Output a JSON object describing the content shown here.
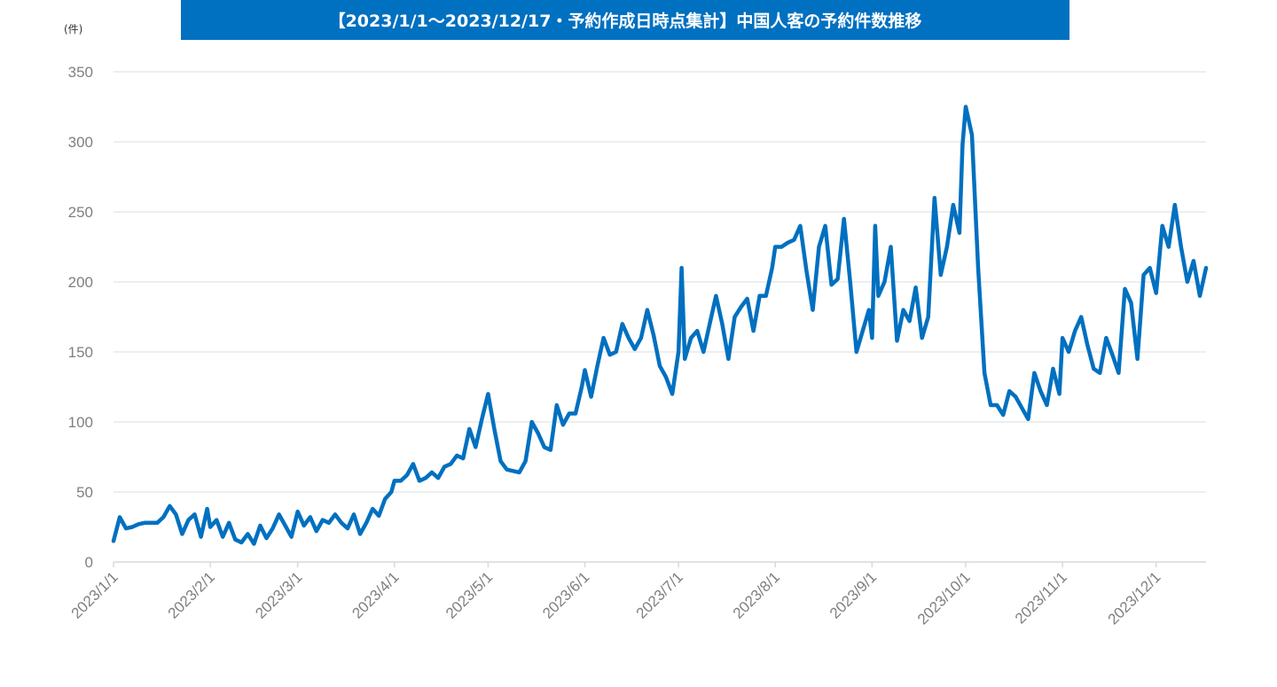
{
  "chart_data": {
    "type": "line",
    "title": "【2023/1/1〜2023/12/17・予約作成日時点集計】中国人客の予約件数推移",
    "ylabel": "(件)",
    "xlabel": "",
    "ylim": [
      0,
      350
    ],
    "xlim": [
      "2023/1/1",
      "2023/12/17"
    ],
    "yticks": [
      "0",
      "50",
      "100",
      "150",
      "200",
      "250",
      "300",
      "350"
    ],
    "xticks": [
      "2023/1/1",
      "2023/2/1",
      "2023/3/1",
      "2023/4/1",
      "2023/5/1",
      "2023/6/1",
      "2023/7/1",
      "2023/8/1",
      "2023/9/1",
      "2023/10/1",
      "2023/11/1",
      "2023/12/1"
    ],
    "grid": true,
    "legend": "none",
    "colors": {
      "line": "#0070c0",
      "title_bg": "#0070c0",
      "grid": "#e8e8e8"
    },
    "points": [
      [
        "2023/1/1",
        15
      ],
      [
        "2023/1/3",
        32
      ],
      [
        "2023/1/5",
        24
      ],
      [
        "2023/1/7",
        25
      ],
      [
        "2023/1/9",
        27
      ],
      [
        "2023/1/11",
        28
      ],
      [
        "2023/1/13",
        28
      ],
      [
        "2023/1/15",
        28
      ],
      [
        "2023/1/17",
        32
      ],
      [
        "2023/1/19",
        40
      ],
      [
        "2023/1/21",
        34
      ],
      [
        "2023/1/23",
        20
      ],
      [
        "2023/1/25",
        30
      ],
      [
        "2023/1/27",
        34
      ],
      [
        "2023/1/29",
        18
      ],
      [
        "2023/1/31",
        38
      ],
      [
        "2023/2/1",
        25
      ],
      [
        "2023/2/3",
        30
      ],
      [
        "2023/2/5",
        18
      ],
      [
        "2023/2/7",
        28
      ],
      [
        "2023/2/9",
        16
      ],
      [
        "2023/2/11",
        14
      ],
      [
        "2023/2/13",
        20
      ],
      [
        "2023/2/15",
        13
      ],
      [
        "2023/2/17",
        26
      ],
      [
        "2023/2/19",
        17
      ],
      [
        "2023/2/21",
        24
      ],
      [
        "2023/2/23",
        34
      ],
      [
        "2023/2/25",
        26
      ],
      [
        "2023/2/27",
        18
      ],
      [
        "2023/3/1",
        36
      ],
      [
        "2023/3/3",
        26
      ],
      [
        "2023/3/5",
        32
      ],
      [
        "2023/3/7",
        22
      ],
      [
        "2023/3/9",
        30
      ],
      [
        "2023/3/11",
        28
      ],
      [
        "2023/3/13",
        34
      ],
      [
        "2023/3/15",
        28
      ],
      [
        "2023/3/17",
        24
      ],
      [
        "2023/3/19",
        34
      ],
      [
        "2023/3/21",
        20
      ],
      [
        "2023/3/23",
        28
      ],
      [
        "2023/3/25",
        38
      ],
      [
        "2023/3/27",
        33
      ],
      [
        "2023/3/29",
        45
      ],
      [
        "2023/3/31",
        50
      ],
      [
        "2023/4/1",
        58
      ],
      [
        "2023/4/3",
        58
      ],
      [
        "2023/4/5",
        62
      ],
      [
        "2023/4/7",
        70
      ],
      [
        "2023/4/9",
        58
      ],
      [
        "2023/4/11",
        60
      ],
      [
        "2023/4/13",
        64
      ],
      [
        "2023/4/15",
        60
      ],
      [
        "2023/4/17",
        68
      ],
      [
        "2023/4/19",
        70
      ],
      [
        "2023/4/21",
        76
      ],
      [
        "2023/4/23",
        74
      ],
      [
        "2023/4/25",
        95
      ],
      [
        "2023/4/27",
        82
      ],
      [
        "2023/4/29",
        102
      ],
      [
        "2023/5/1",
        120
      ],
      [
        "2023/5/3",
        95
      ],
      [
        "2023/5/5",
        72
      ],
      [
        "2023/5/7",
        66
      ],
      [
        "2023/5/9",
        65
      ],
      [
        "2023/5/11",
        64
      ],
      [
        "2023/5/13",
        72
      ],
      [
        "2023/5/15",
        100
      ],
      [
        "2023/5/17",
        92
      ],
      [
        "2023/5/19",
        82
      ],
      [
        "2023/5/21",
        80
      ],
      [
        "2023/5/23",
        112
      ],
      [
        "2023/5/25",
        98
      ],
      [
        "2023/5/27",
        106
      ],
      [
        "2023/5/29",
        106
      ],
      [
        "2023/5/31",
        125
      ],
      [
        "2023/6/1",
        137
      ],
      [
        "2023/6/3",
        118
      ],
      [
        "2023/6/5",
        140
      ],
      [
        "2023/6/7",
        160
      ],
      [
        "2023/6/9",
        148
      ],
      [
        "2023/6/11",
        150
      ],
      [
        "2023/6/13",
        170
      ],
      [
        "2023/6/15",
        160
      ],
      [
        "2023/6/17",
        152
      ],
      [
        "2023/6/19",
        160
      ],
      [
        "2023/6/21",
        180
      ],
      [
        "2023/6/23",
        162
      ],
      [
        "2023/6/25",
        140
      ],
      [
        "2023/6/27",
        132
      ],
      [
        "2023/6/29",
        120
      ],
      [
        "2023/7/1",
        150
      ],
      [
        "2023/7/2",
        210
      ],
      [
        "2023/7/3",
        145
      ],
      [
        "2023/7/5",
        160
      ],
      [
        "2023/7/7",
        165
      ],
      [
        "2023/7/9",
        150
      ],
      [
        "2023/7/11",
        170
      ],
      [
        "2023/7/13",
        190
      ],
      [
        "2023/7/15",
        170
      ],
      [
        "2023/7/17",
        145
      ],
      [
        "2023/7/19",
        175
      ],
      [
        "2023/7/21",
        182
      ],
      [
        "2023/7/23",
        188
      ],
      [
        "2023/7/25",
        165
      ],
      [
        "2023/7/27",
        190
      ],
      [
        "2023/7/29",
        190
      ],
      [
        "2023/7/31",
        210
      ],
      [
        "2023/8/1",
        225
      ],
      [
        "2023/8/3",
        225
      ],
      [
        "2023/8/5",
        228
      ],
      [
        "2023/8/7",
        230
      ],
      [
        "2023/8/9",
        240
      ],
      [
        "2023/8/11",
        208
      ],
      [
        "2023/8/13",
        180
      ],
      [
        "2023/8/15",
        225
      ],
      [
        "2023/8/17",
        240
      ],
      [
        "2023/8/19",
        198
      ],
      [
        "2023/8/21",
        202
      ],
      [
        "2023/8/23",
        245
      ],
      [
        "2023/8/25",
        200
      ],
      [
        "2023/8/27",
        150
      ],
      [
        "2023/8/29",
        165
      ],
      [
        "2023/8/31",
        180
      ],
      [
        "2023/9/1",
        160
      ],
      [
        "2023/9/2",
        240
      ],
      [
        "2023/9/3",
        190
      ],
      [
        "2023/9/5",
        200
      ],
      [
        "2023/9/7",
        225
      ],
      [
        "2023/9/9",
        158
      ],
      [
        "2023/9/11",
        180
      ],
      [
        "2023/9/13",
        172
      ],
      [
        "2023/9/15",
        196
      ],
      [
        "2023/9/17",
        160
      ],
      [
        "2023/9/19",
        175
      ],
      [
        "2023/9/21",
        260
      ],
      [
        "2023/9/23",
        205
      ],
      [
        "2023/9/25",
        225
      ],
      [
        "2023/9/27",
        255
      ],
      [
        "2023/9/29",
        235
      ],
      [
        "2023/9/30",
        298
      ],
      [
        "2023/10/1",
        325
      ],
      [
        "2023/10/3",
        305
      ],
      [
        "2023/10/5",
        210
      ],
      [
        "2023/10/7",
        135
      ],
      [
        "2023/10/9",
        112
      ],
      [
        "2023/10/11",
        112
      ],
      [
        "2023/10/13",
        105
      ],
      [
        "2023/10/15",
        122
      ],
      [
        "2023/10/17",
        118
      ],
      [
        "2023/10/19",
        110
      ],
      [
        "2023/10/21",
        102
      ],
      [
        "2023/10/23",
        135
      ],
      [
        "2023/10/25",
        122
      ],
      [
        "2023/10/27",
        112
      ],
      [
        "2023/10/29",
        138
      ],
      [
        "2023/10/31",
        120
      ],
      [
        "2023/11/1",
        160
      ],
      [
        "2023/11/3",
        150
      ],
      [
        "2023/11/5",
        165
      ],
      [
        "2023/11/7",
        175
      ],
      [
        "2023/11/9",
        155
      ],
      [
        "2023/11/11",
        138
      ],
      [
        "2023/11/13",
        135
      ],
      [
        "2023/11/15",
        160
      ],
      [
        "2023/11/17",
        148
      ],
      [
        "2023/11/19",
        135
      ],
      [
        "2023/11/21",
        195
      ],
      [
        "2023/11/23",
        185
      ],
      [
        "2023/11/25",
        145
      ],
      [
        "2023/11/27",
        205
      ],
      [
        "2023/11/29",
        210
      ],
      [
        "2023/12/1",
        192
      ],
      [
        "2023/12/3",
        240
      ],
      [
        "2023/12/5",
        225
      ],
      [
        "2023/12/7",
        255
      ],
      [
        "2023/12/9",
        225
      ],
      [
        "2023/12/11",
        200
      ],
      [
        "2023/12/13",
        215
      ],
      [
        "2023/12/15",
        190
      ],
      [
        "2023/12/17",
        210
      ]
    ]
  }
}
